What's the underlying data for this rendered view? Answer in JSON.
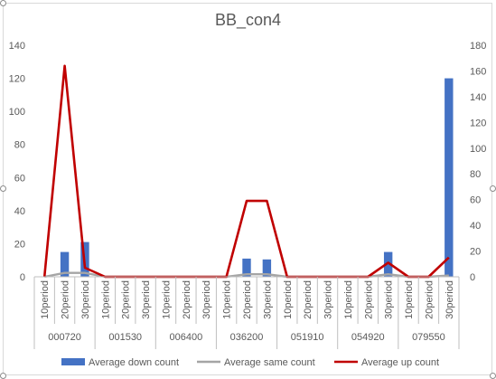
{
  "chart_data": {
    "type": "bar",
    "title": "BB_con4",
    "xlabel": "",
    "ylabel": "",
    "groups": [
      "000720",
      "001530",
      "006400",
      "036200",
      "051910",
      "054920",
      "079550"
    ],
    "periods": [
      "10period",
      "20period",
      "30period"
    ],
    "categories": [
      "10period",
      "20period",
      "30period",
      "10period",
      "20period",
      "30period",
      "10period",
      "20period",
      "30period",
      "10period",
      "20period",
      "30period",
      "10period",
      "20period",
      "30period",
      "10period",
      "20period",
      "30period",
      "10period",
      "20period",
      "30period"
    ],
    "ylim": [
      0,
      140
    ],
    "y2lim": [
      0,
      180
    ],
    "yticks": [
      0,
      20,
      40,
      60,
      80,
      100,
      120,
      140
    ],
    "y2ticks": [
      0,
      20,
      40,
      60,
      80,
      100,
      120,
      140,
      160,
      180
    ],
    "legend_position": "bottom",
    "grid": false,
    "series": [
      {
        "name": "Average down count",
        "type": "bar",
        "axis": "left",
        "color": "#4472c4",
        "values": [
          0,
          15,
          21,
          0,
          0,
          0,
          0,
          0,
          0,
          0,
          11,
          10.5,
          0,
          0,
          0,
          0,
          0,
          15,
          0,
          0,
          120
        ]
      },
      {
        "name": "Average same count",
        "type": "line",
        "axis": "right",
        "color": "#a5a5a5",
        "values": [
          0,
          3,
          3,
          0,
          0,
          0,
          0,
          0,
          0,
          0,
          2,
          2,
          0,
          0,
          0,
          0,
          0,
          2,
          0,
          0,
          1
        ]
      },
      {
        "name": "Average up count",
        "type": "line",
        "axis": "right",
        "color": "#c00000",
        "values": [
          0,
          164,
          7,
          0,
          0,
          0,
          0,
          0,
          0,
          0,
          59,
          59,
          0,
          0,
          0,
          0,
          0,
          11,
          0,
          0,
          15
        ]
      }
    ]
  }
}
